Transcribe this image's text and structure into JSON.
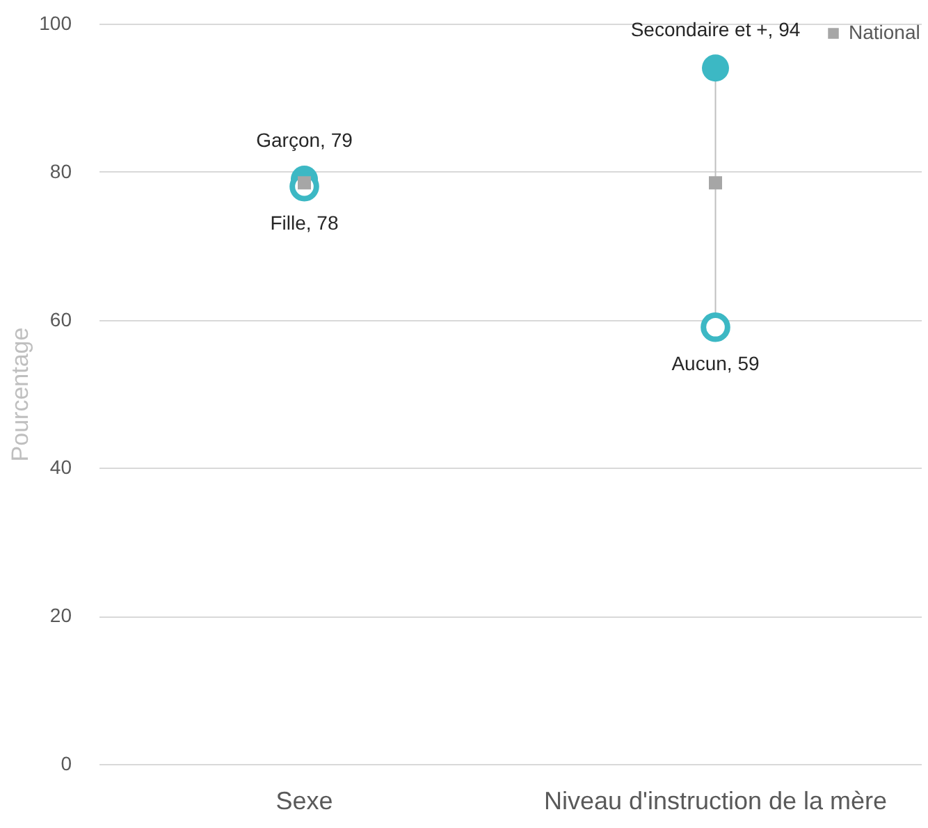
{
  "chart_data": {
    "type": "scatter",
    "ylabel": "Pourcentage",
    "categories": [
      "Sexe",
      "Niveau d'instruction de la mère"
    ],
    "series": [
      {
        "color": "#3cb8c4",
        "values": [
          79,
          94
        ],
        "value_labels": [
          "Garçon, 79",
          "Secondaire et +, 94"
        ]
      },
      {
        "color": "#3cb8c4",
        "values": [
          78,
          59
        ],
        "value_labels": [
          "Fille, 78",
          "Aucun, 59"
        ]
      },
      {
        "name": "National",
        "color": "#a6a6a6",
        "values": [
          78.5,
          78.5
        ],
        "marker": "square"
      }
    ],
    "ylim": [
      0,
      100
    ],
    "yticks": [
      0,
      20,
      40,
      60,
      80,
      100
    ],
    "grid": "y",
    "legend": "top right",
    "marker": "circle"
  }
}
